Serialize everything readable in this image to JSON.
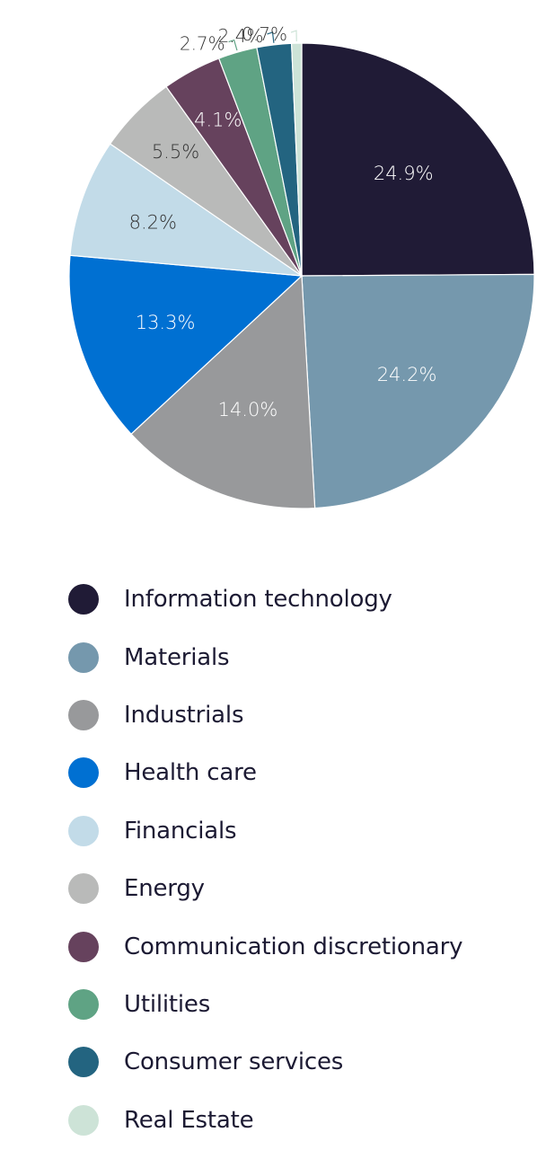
{
  "chart_data": {
    "type": "pie",
    "slices": [
      {
        "name": "Information technology",
        "value": 24.9,
        "label": "24.9%",
        "color": "#201b36",
        "label_color": "#ffffff"
      },
      {
        "name": "Materials",
        "value": 24.2,
        "label": "24.2%",
        "color": "#7598ad",
        "label_color": "#ffffff"
      },
      {
        "name": "Industrials",
        "value": 14.0,
        "label": "14.0%",
        "color": "#98999b",
        "label_color": "#ffffff"
      },
      {
        "name": "Health care",
        "value": 13.3,
        "label": "13.3%",
        "color": "#0070d2",
        "label_color": "#ffffff"
      },
      {
        "name": "Financials",
        "value": 8.2,
        "label": "8.2%",
        "color": "#c2dbe8",
        "label_color": "#333333"
      },
      {
        "name": "Energy",
        "value": 5.5,
        "label": "5.5%",
        "color": "#b9bab9",
        "label_color": "#333333"
      },
      {
        "name": "Communication discretionary",
        "value": 4.1,
        "label": "4.1%",
        "color": "#66425d",
        "label_color": "#ffffff"
      },
      {
        "name": "Utilities",
        "value": 2.7,
        "label": "2.7%",
        "color": "#5fa384",
        "label_color": "#333333"
      },
      {
        "name": "Consumer services",
        "value": 2.4,
        "label": "2.4%",
        "color": "#236480",
        "label_color": "#333333"
      },
      {
        "name": "Real Estate",
        "value": 0.7,
        "label": "0.7%",
        "color": "#cde3d7",
        "label_color": "#333333"
      }
    ],
    "legend_position": "bottom"
  }
}
